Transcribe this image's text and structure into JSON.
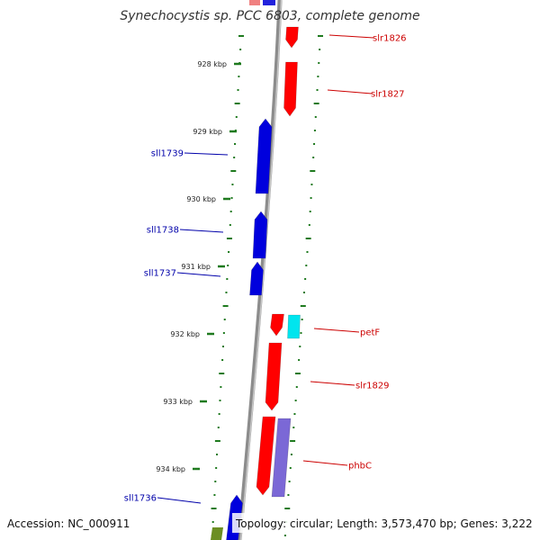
{
  "title": "Synechocystis sp. PCC 6803, complete genome",
  "footer": {
    "accession": "Accession: NC_000911",
    "topology": "Topology: circular; Length: 3,573,470 bp; Genes: 3,222"
  },
  "colors": {
    "backbone": "#8c8c8c",
    "tick": "#1f7a1f",
    "forward_gene": "#ff0000",
    "reverse_gene": "#0000dd",
    "ferredoxin": "#00e5ee",
    "phb_synthase": "#7b68d6",
    "other": "#6b8e23",
    "forward_label": "#cc0000",
    "reverse_label": "#0000aa"
  },
  "scale": {
    "ticks": [
      "928 kbp",
      "929 kbp",
      "930 kbp",
      "931 kbp",
      "932 kbp",
      "933 kbp",
      "934 kbp"
    ]
  },
  "genes": [
    {
      "name": "slr1826",
      "strand": "forward",
      "color_key": "forward_gene"
    },
    {
      "name": "slr1827",
      "strand": "forward",
      "color_key": "forward_gene"
    },
    {
      "name": "sll1739",
      "strand": "reverse",
      "color_key": "reverse_gene"
    },
    {
      "name": "sll1738",
      "strand": "reverse",
      "color_key": "reverse_gene"
    },
    {
      "name": "sll1737",
      "strand": "reverse",
      "color_key": "reverse_gene"
    },
    {
      "name": "petF",
      "strand": "forward",
      "color_key": "forward_gene"
    },
    {
      "name": "slr1829",
      "strand": "forward",
      "color_key": "forward_gene"
    },
    {
      "name": "phbC",
      "strand": "forward",
      "color_key": "forward_gene"
    },
    {
      "name": "sll1736",
      "strand": "reverse",
      "color_key": "reverse_gene"
    }
  ]
}
